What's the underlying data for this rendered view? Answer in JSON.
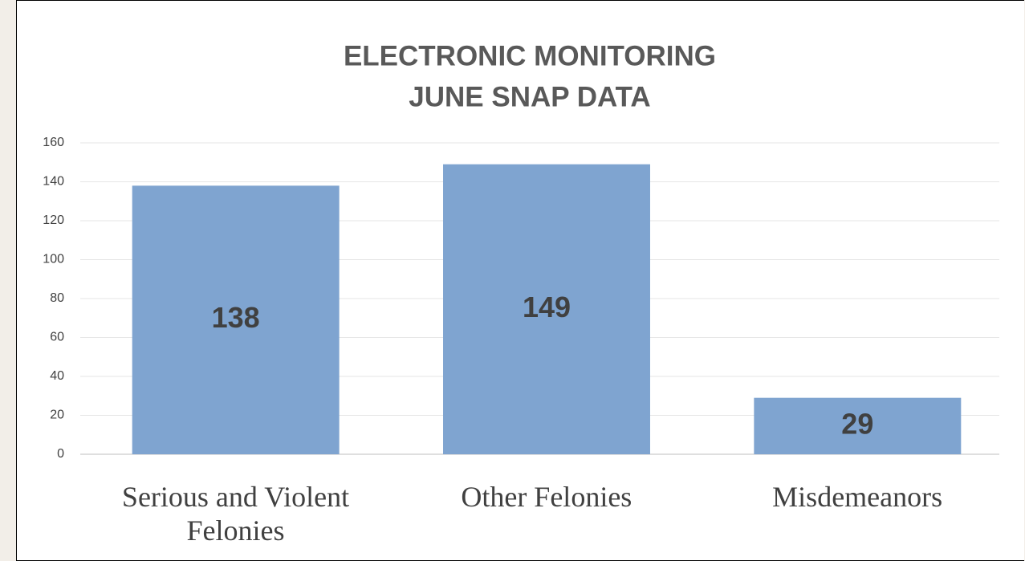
{
  "chart_data": {
    "type": "bar",
    "title": [
      "ELECTRONIC MONITORING",
      "JUNE SNAP DATA"
    ],
    "categories": [
      "Serious and Violent Felonies",
      "Other Felonies",
      "Misdemeanors"
    ],
    "values": [
      138,
      149,
      29
    ],
    "color": "#7fa4d0",
    "ylim": [
      0,
      160
    ],
    "yticks": [
      0,
      20,
      40,
      60,
      80,
      100,
      120,
      140,
      160
    ],
    "grid": true
  }
}
